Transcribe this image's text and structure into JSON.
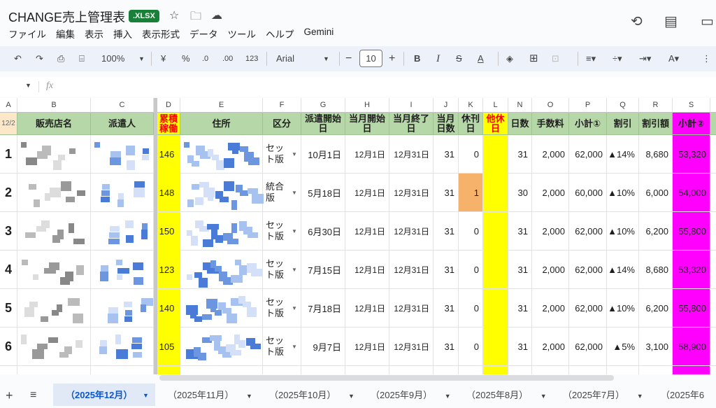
{
  "header": {
    "title": "CHANGE売上管理表",
    "badge": ".XLSX",
    "menu": [
      "ファイル",
      "編集",
      "表示",
      "挿入",
      "表示形式",
      "データ",
      "ツール",
      "ヘルプ",
      "Gemini"
    ]
  },
  "toolbar": {
    "zoom": "100%",
    "currency": "¥",
    "percent": "%",
    "dec_minus": ".0",
    "dec_plus": ".00",
    "number_format": "123",
    "font": "Arial",
    "font_size": "10"
  },
  "formula": {
    "fx": "fx"
  },
  "columns": [
    "A",
    "B",
    "C",
    "D",
    "E",
    "F",
    "G",
    "H",
    "I",
    "J",
    "K",
    "L",
    "N",
    "O",
    "P",
    "Q",
    "R",
    "S"
  ],
  "headers": {
    "a": "12/2",
    "b": "販売店名",
    "c": "派遣人",
    "d": "累積稼働",
    "e": "住所",
    "f": "区分",
    "g": "派遣開始日",
    "h": "当月開始日",
    "i": "当月終了日",
    "j": "当月日数",
    "k": "休刊日",
    "l": "他休日",
    "n": "日数",
    "o": "手数料",
    "p": "小計①",
    "q": "割引",
    "r": "割引額",
    "s": "小計②"
  },
  "rows": [
    {
      "no": "1",
      "d": "146",
      "f": "セット版",
      "g": "10月1日",
      "h": "12月1日",
      "i": "12月31日",
      "j": "31",
      "k": "0",
      "n": "31",
      "o": "2,000",
      "p": "62,000",
      "q": "▲14%",
      "r": "8,680",
      "s": "53,320"
    },
    {
      "no": "2",
      "d": "148",
      "f": "統合版",
      "g": "5月18日",
      "h": "12月1日",
      "i": "12月31日",
      "j": "31",
      "k": "1",
      "n": "30",
      "o": "2,000",
      "p": "60,000",
      "q": "▲10%",
      "r": "6,000",
      "s": "54,000"
    },
    {
      "no": "3",
      "d": "150",
      "f": "セット版",
      "g": "6月30日",
      "h": "12月1日",
      "i": "12月31日",
      "j": "31",
      "k": "0",
      "n": "31",
      "o": "2,000",
      "p": "62,000",
      "q": "▲10%",
      "r": "6,200",
      "s": "55,800"
    },
    {
      "no": "4",
      "d": "123",
      "f": "セット版",
      "g": "7月15日",
      "h": "12月1日",
      "i": "12月31日",
      "j": "31",
      "k": "0",
      "n": "31",
      "o": "2,000",
      "p": "62,000",
      "q": "▲14%",
      "r": "8,680",
      "s": "53,320"
    },
    {
      "no": "5",
      "d": "140",
      "f": "セット版",
      "g": "7月18日",
      "h": "12月1日",
      "i": "12月31日",
      "j": "31",
      "k": "0",
      "n": "31",
      "o": "2,000",
      "p": "62,000",
      "q": "▲10%",
      "r": "6,200",
      "s": "55,800"
    },
    {
      "no": "6",
      "d": "105",
      "f": "セット版",
      "g": "9月7日",
      "h": "12月1日",
      "i": "12月31日",
      "j": "31",
      "k": "0",
      "n": "31",
      "o": "2,000",
      "p": "62,000",
      "q": "▲5%",
      "r": "3,100",
      "s": "58,900"
    }
  ],
  "sheet_tabs": [
    "（2025年12月）",
    "（2025年11月）",
    "（2025年10月）",
    "（2025年9月）",
    "（2025年8月）",
    "（2025年7月）",
    "（2025年6"
  ],
  "colors": {
    "header_green": "#b6d7a8",
    "yellow": "#ffff00",
    "magenta": "#ff00ff",
    "orange": "#f6b26b",
    "red_text": "#ff0000",
    "active_tab": "#0b57d0"
  }
}
